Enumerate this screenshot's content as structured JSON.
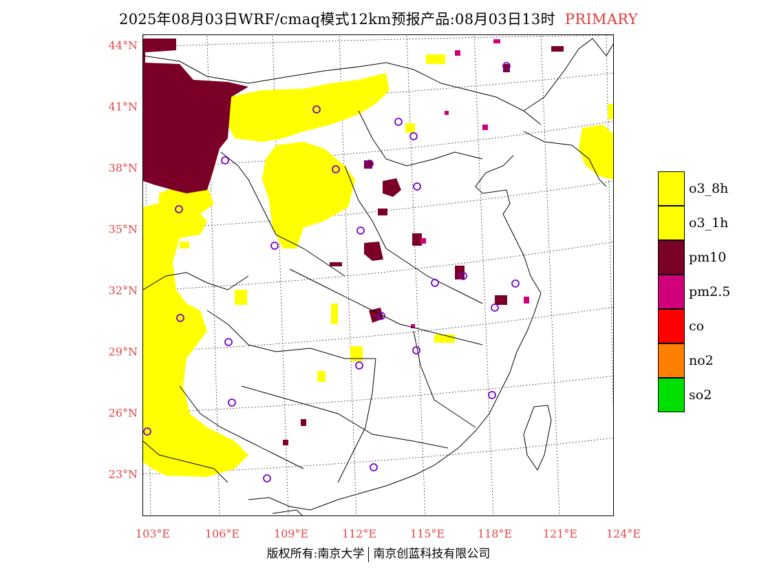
{
  "title": {
    "main": "2025年08月03日WRF/cmaq模式12km预报产品:08月03日13时",
    "tag": "PRIMARY"
  },
  "map": {
    "lat_labels": [
      "44°N",
      "41°N",
      "38°N",
      "35°N",
      "32°N",
      "29°N",
      "26°N",
      "23°N"
    ],
    "lon_labels": [
      "103°E",
      "106°E",
      "109°E",
      "112°E",
      "115°E",
      "118°E",
      "121°E",
      "124°E"
    ],
    "colors": {
      "o3_8h": "#ffff00",
      "o3_1h": "#ffff00",
      "pm10": "#7a0028",
      "pm2_5": "#d0007a",
      "station_marker": "#7a00c8",
      "axis_label": "#e04646"
    }
  },
  "legend": {
    "items": [
      {
        "label": "o3_8h",
        "color": "#ffff00"
      },
      {
        "label": "o3_1h",
        "color": "#ffff00"
      },
      {
        "label": "pm10",
        "color": "#7a0028"
      },
      {
        "label": "pm2.5",
        "color": "#d0007a"
      },
      {
        "label": "co",
        "color": "#ff0000"
      },
      {
        "label": "no2",
        "color": "#ff7f00"
      },
      {
        "label": "so2",
        "color": "#00e000"
      }
    ]
  },
  "footer": {
    "left": "版权所有:南京大学",
    "right": "南京创蓝科技有限公司"
  }
}
